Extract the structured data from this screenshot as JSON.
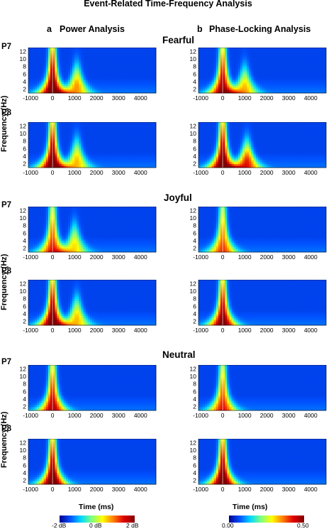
{
  "figure": {
    "title": "Event-Related Time-Frequency Analysis",
    "columns": [
      {
        "letter": "a",
        "label": "Power Analysis"
      },
      {
        "letter": "b",
        "label": "Phase-Locking Analysis"
      }
    ],
    "conditions": [
      "Fearful",
      "Joyful",
      "Neutral"
    ],
    "electrodes": [
      "P7",
      "P8"
    ],
    "ylabel": "Frequency (Hz)",
    "xlabel": "Time (ms)",
    "colorbars": [
      {
        "ticks": [
          "-2 dB",
          "0 dB",
          "2 dB"
        ],
        "colors": [
          "#00008f",
          "#0050ff",
          "#00d8ff",
          "#80ff80",
          "#ffff00",
          "#ff8000",
          "#e00000",
          "#800000"
        ]
      },
      {
        "ticks": [
          "0.00",
          "0.50"
        ],
        "colors": [
          "#00008f",
          "#0050ff",
          "#00d8ff",
          "#80ff80",
          "#ffff00",
          "#ff8000",
          "#e00000",
          "#800000"
        ]
      }
    ]
  },
  "chart_data": [
    {
      "type": "heatmap",
      "analysis": "Power Analysis",
      "condition": "Fearful",
      "electrode": "P7",
      "x_ticks": [
        -1000,
        0,
        1000,
        2000,
        3000,
        4000
      ],
      "y_ticks": [
        2,
        4,
        6,
        8,
        10,
        12
      ],
      "xlim": [
        -1100,
        4700
      ],
      "ylim": [
        1,
        13
      ],
      "peaks": [
        {
          "time": 0,
          "freq": 2,
          "strength": 1.0
        },
        {
          "time": 1100,
          "freq": 3,
          "strength": 0.6
        }
      ]
    },
    {
      "type": "heatmap",
      "analysis": "Phase-Locking Analysis",
      "condition": "Fearful",
      "electrode": "P7",
      "x_ticks": [
        -1000,
        0,
        1000,
        2000,
        3000,
        4000
      ],
      "y_ticks": [
        2,
        4,
        6,
        8,
        10,
        12
      ],
      "xlim": [
        -1100,
        4700
      ],
      "ylim": [
        1,
        13
      ],
      "peaks": [
        {
          "time": 0,
          "freq": 2,
          "strength": 0.9
        },
        {
          "time": 1000,
          "freq": 2.5,
          "strength": 0.55
        }
      ]
    },
    {
      "type": "heatmap",
      "analysis": "Power Analysis",
      "condition": "Fearful",
      "electrode": "P8",
      "x_ticks": [
        -1000,
        0,
        1000,
        2000,
        3000,
        4000
      ],
      "y_ticks": [
        2,
        4,
        6,
        8,
        10,
        12
      ],
      "xlim": [
        -1100,
        4700
      ],
      "ylim": [
        1,
        13
      ],
      "peaks": [
        {
          "time": 0,
          "freq": 2,
          "strength": 1.0
        },
        {
          "time": 1100,
          "freq": 3,
          "strength": 0.55
        }
      ]
    },
    {
      "type": "heatmap",
      "analysis": "Phase-Locking Analysis",
      "condition": "Fearful",
      "electrode": "P8",
      "x_ticks": [
        -1000,
        0,
        1000,
        2000,
        3000,
        4000
      ],
      "y_ticks": [
        2,
        4,
        6,
        8,
        10,
        12
      ],
      "xlim": [
        -1100,
        4700
      ],
      "ylim": [
        1,
        13
      ],
      "peaks": [
        {
          "time": 0,
          "freq": 2,
          "strength": 1.0
        },
        {
          "time": 1100,
          "freq": 2.5,
          "strength": 0.75
        }
      ]
    },
    {
      "type": "heatmap",
      "analysis": "Power Analysis",
      "condition": "Joyful",
      "electrode": "P7",
      "x_ticks": [
        -1000,
        0,
        1000,
        2000,
        3000,
        4000
      ],
      "y_ticks": [
        2,
        4,
        6,
        8,
        10,
        12
      ],
      "xlim": [
        -1100,
        4700
      ],
      "ylim": [
        1,
        13
      ],
      "peaks": [
        {
          "time": 0,
          "freq": 2,
          "strength": 0.75
        },
        {
          "time": 1000,
          "freq": 3,
          "strength": 0.5
        }
      ]
    },
    {
      "type": "heatmap",
      "analysis": "Phase-Locking Analysis",
      "condition": "Joyful",
      "electrode": "P7",
      "x_ticks": [
        -1000,
        0,
        1000,
        2000,
        3000,
        4000
      ],
      "y_ticks": [
        2,
        4,
        6,
        8,
        10,
        12
      ],
      "xlim": [
        -1100,
        4700
      ],
      "ylim": [
        1,
        13
      ],
      "peaks": [
        {
          "time": 0,
          "freq": 2,
          "strength": 0.7
        }
      ]
    },
    {
      "type": "heatmap",
      "analysis": "Power Analysis",
      "condition": "Joyful",
      "electrode": "P8",
      "x_ticks": [
        -1000,
        0,
        1000,
        2000,
        3000,
        4000
      ],
      "y_ticks": [
        2,
        4,
        6,
        8,
        10,
        12
      ],
      "xlim": [
        -1100,
        4700
      ],
      "ylim": [
        1,
        13
      ],
      "peaks": [
        {
          "time": 0,
          "freq": 2,
          "strength": 1.0
        },
        {
          "time": 1100,
          "freq": 3,
          "strength": 0.55
        }
      ]
    },
    {
      "type": "heatmap",
      "analysis": "Phase-Locking Analysis",
      "condition": "Joyful",
      "electrode": "P8",
      "x_ticks": [
        -1000,
        0,
        1000,
        2000,
        3000,
        4000
      ],
      "y_ticks": [
        2,
        4,
        6,
        8,
        10,
        12
      ],
      "xlim": [
        -1100,
        4700
      ],
      "ylim": [
        1,
        13
      ],
      "peaks": [
        {
          "time": 0,
          "freq": 2,
          "strength": 0.95
        }
      ]
    },
    {
      "type": "heatmap",
      "analysis": "Power Analysis",
      "condition": "Neutral",
      "electrode": "P7",
      "x_ticks": [
        -1000,
        0,
        1000,
        2000,
        3000,
        4000
      ],
      "y_ticks": [
        2,
        4,
        6,
        8,
        10,
        12
      ],
      "xlim": [
        -1100,
        4700
      ],
      "ylim": [
        1,
        13
      ],
      "peaks": [
        {
          "time": 0,
          "freq": 2,
          "strength": 0.85
        }
      ]
    },
    {
      "type": "heatmap",
      "analysis": "Phase-Locking Analysis",
      "condition": "Neutral",
      "electrode": "P7",
      "x_ticks": [
        -1000,
        0,
        1000,
        2000,
        3000,
        4000
      ],
      "y_ticks": [
        2,
        4,
        6,
        8,
        10,
        12
      ],
      "xlim": [
        -1100,
        4700
      ],
      "ylim": [
        1,
        13
      ],
      "peaks": [
        {
          "time": 0,
          "freq": 2,
          "strength": 0.75
        }
      ]
    },
    {
      "type": "heatmap",
      "analysis": "Power Analysis",
      "condition": "Neutral",
      "electrode": "P8",
      "x_ticks": [
        -1000,
        0,
        1000,
        2000,
        3000,
        4000
      ],
      "y_ticks": [
        2,
        4,
        6,
        8,
        10,
        12
      ],
      "xlim": [
        -1100,
        4700
      ],
      "ylim": [
        1,
        13
      ],
      "peaks": [
        {
          "time": 0,
          "freq": 2,
          "strength": 1.0
        }
      ]
    },
    {
      "type": "heatmap",
      "analysis": "Phase-Locking Analysis",
      "condition": "Neutral",
      "electrode": "P8",
      "x_ticks": [
        -1000,
        0,
        1000,
        2000,
        3000,
        4000
      ],
      "y_ticks": [
        2,
        4,
        6,
        8,
        10,
        12
      ],
      "xlim": [
        -1100,
        4700
      ],
      "ylim": [
        1,
        13
      ],
      "peaks": [
        {
          "time": 0,
          "freq": 2,
          "strength": 1.0
        }
      ]
    }
  ]
}
